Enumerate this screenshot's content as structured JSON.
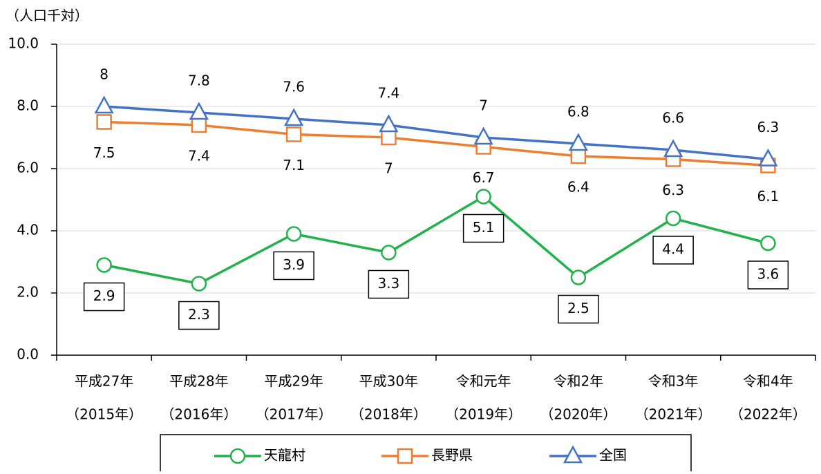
{
  "chart_data": {
    "type": "line",
    "y_label": "（人口千対）",
    "categories": [
      "平成27年",
      "平成28年",
      "平成29年",
      "平成30年",
      "令和元年",
      "令和2年",
      "令和3年",
      "令和4年"
    ],
    "category_sublabels": [
      "（2015年）",
      "（2016年）",
      "（2017年）",
      "（2018年）",
      "（2019年）",
      "（2020年）",
      "（2021年）",
      "（2022年）"
    ],
    "ylim": [
      0,
      10
    ],
    "yticks": [
      {
        "value": 0,
        "label": "0.0"
      },
      {
        "value": 2,
        "label": "2.0"
      },
      {
        "value": 4,
        "label": "4.0"
      },
      {
        "value": 6,
        "label": "6.0"
      },
      {
        "value": 8,
        "label": "8.0"
      },
      {
        "value": 10,
        "label": "10.0"
      }
    ],
    "grid": true,
    "legend": "bottom",
    "series": [
      {
        "name": "天龍村",
        "color": "#22b14c",
        "marker": "circle",
        "label_pos": "box-below",
        "values": [
          2.9,
          2.3,
          3.9,
          3.3,
          5.1,
          2.5,
          4.4,
          3.6
        ]
      },
      {
        "name": "長野県",
        "color": "#ed7d31",
        "marker": "square",
        "label_pos": "below",
        "values": [
          7.5,
          7.4,
          7.1,
          7.0,
          6.7,
          6.4,
          6.3,
          6.1
        ]
      },
      {
        "name": "全国",
        "color": "#4472c4",
        "marker": "triangle",
        "label_pos": "above",
        "values": [
          8.0,
          7.8,
          7.6,
          7.4,
          7.0,
          6.8,
          6.6,
          6.3
        ]
      }
    ]
  }
}
